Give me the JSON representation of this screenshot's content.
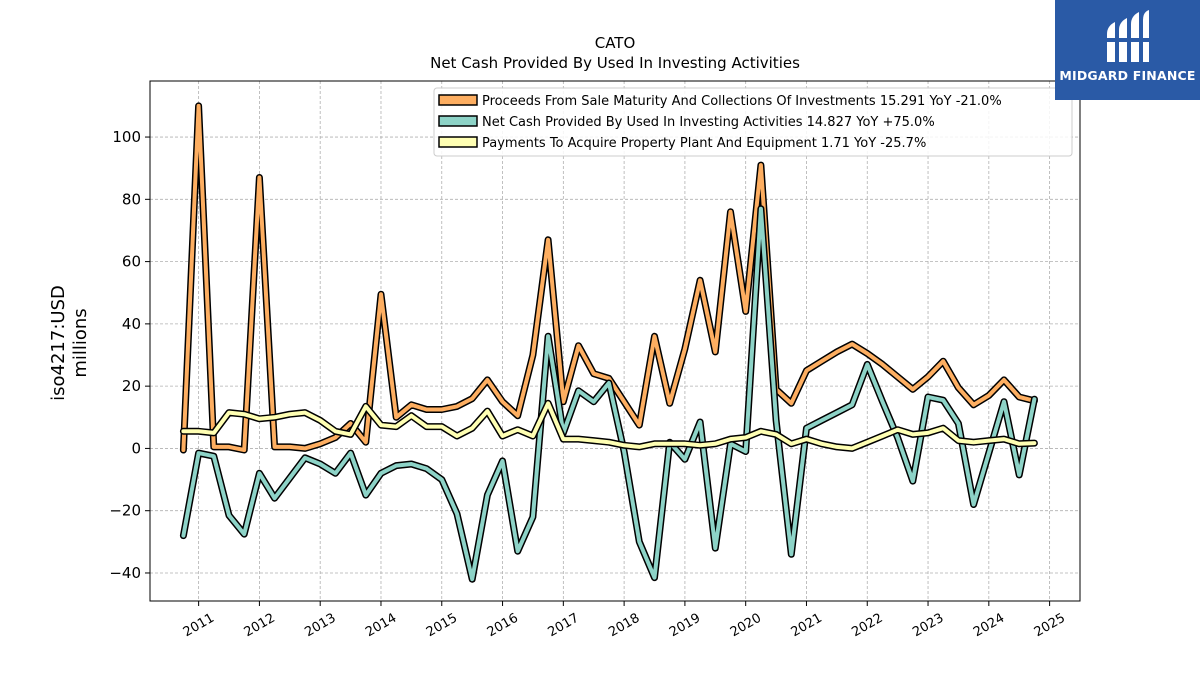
{
  "chart_data": {
    "type": "line",
    "title": "CATO",
    "subtitle": "Net Cash Provided By Used In Investing Activities",
    "ylabel": "iso4217:USD\nmillions",
    "xlabel": "",
    "ylim": [
      -49,
      118
    ],
    "xlim": [
      2010.2,
      2025.5
    ],
    "yticks": [
      -40,
      -20,
      0,
      20,
      40,
      60,
      80,
      100
    ],
    "ytick_labels": [
      "−40",
      "−20",
      "0",
      "20",
      "40",
      "60",
      "80",
      "100"
    ],
    "xticks": [
      2011,
      2012,
      2013,
      2014,
      2015,
      2016,
      2017,
      2018,
      2019,
      2020,
      2021,
      2022,
      2023,
      2024,
      2025
    ],
    "xtick_labels": [
      "2011",
      "2012",
      "2013",
      "2014",
      "2015",
      "2016",
      "2017",
      "2018",
      "2019",
      "2020",
      "2021",
      "2022",
      "2023",
      "2024",
      "2025"
    ],
    "grid": true,
    "legend_position": "top-right",
    "series": [
      {
        "name": "Proceeds From Sale Maturity And Collections Of Investments",
        "legend": "Proceeds From Sale Maturity And Collections Of Investments  15.291 YoY -21.0%",
        "color": "#fdae61",
        "points": [
          [
            2010.75,
            -0.5
          ],
          [
            2011.0,
            110
          ],
          [
            2011.25,
            0.5
          ],
          [
            2011.5,
            0.5
          ],
          [
            2011.75,
            -0.5
          ],
          [
            2012.0,
            87
          ],
          [
            2012.25,
            0.5
          ],
          [
            2012.5,
            0.5
          ],
          [
            2012.75,
            0
          ],
          [
            2013.0,
            1.5
          ],
          [
            2013.25,
            3.5
          ],
          [
            2013.5,
            8
          ],
          [
            2013.75,
            2
          ],
          [
            2014.0,
            49.5
          ],
          [
            2014.25,
            10
          ],
          [
            2014.5,
            14
          ],
          [
            2014.75,
            12.5
          ],
          [
            2015.0,
            12.5
          ],
          [
            2015.25,
            13.5
          ],
          [
            2015.5,
            16
          ],
          [
            2015.75,
            22
          ],
          [
            2016.0,
            15
          ],
          [
            2016.25,
            10.5
          ],
          [
            2016.5,
            30
          ],
          [
            2016.75,
            67
          ],
          [
            2017.0,
            15
          ],
          [
            2017.25,
            33
          ],
          [
            2017.5,
            24
          ],
          [
            2017.75,
            22.5
          ],
          [
            2018.0,
            15
          ],
          [
            2018.25,
            7.5
          ],
          [
            2018.5,
            36
          ],
          [
            2018.75,
            14.5
          ],
          [
            2019.0,
            32
          ],
          [
            2019.25,
            54
          ],
          [
            2019.5,
            31
          ],
          [
            2019.75,
            76
          ],
          [
            2020.0,
            44
          ],
          [
            2020.25,
            91
          ],
          [
            2020.5,
            19
          ],
          [
            2020.75,
            14.5
          ],
          [
            2021.0,
            25
          ],
          [
            2021.25,
            28
          ],
          [
            2021.5,
            31
          ],
          [
            2021.75,
            33.5
          ],
          [
            2022.0,
            30.5
          ],
          [
            2022.25,
            27
          ],
          [
            2022.5,
            23
          ],
          [
            2022.75,
            19
          ],
          [
            2023.0,
            23
          ],
          [
            2023.25,
            28
          ],
          [
            2023.5,
            19.5
          ],
          [
            2023.75,
            14
          ],
          [
            2024.0,
            17
          ],
          [
            2024.25,
            22
          ],
          [
            2024.5,
            16.5
          ],
          [
            2024.75,
            15.3
          ]
        ]
      },
      {
        "name": "Net Cash Provided By Used In Investing Activities",
        "legend": "Net Cash Provided By Used In Investing Activities  14.827 YoY +75.0%",
        "color": "#8dd3c7",
        "points": [
          [
            2010.75,
            -28
          ],
          [
            2011.0,
            -1.5
          ],
          [
            2011.25,
            -2.5
          ],
          [
            2011.5,
            -21.5
          ],
          [
            2011.75,
            -27.5
          ],
          [
            2012.0,
            -8
          ],
          [
            2012.25,
            -16
          ],
          [
            2012.5,
            -9.5
          ],
          [
            2012.75,
            -3
          ],
          [
            2013.0,
            -5
          ],
          [
            2013.25,
            -8
          ],
          [
            2013.5,
            -1.5
          ],
          [
            2013.75,
            -15
          ],
          [
            2014.0,
            -8
          ],
          [
            2014.25,
            -5.5
          ],
          [
            2014.5,
            -5
          ],
          [
            2014.75,
            -6.5
          ],
          [
            2015.0,
            -10
          ],
          [
            2015.25,
            -21
          ],
          [
            2015.5,
            -42
          ],
          [
            2015.75,
            -15
          ],
          [
            2016.0,
            -4
          ],
          [
            2016.25,
            -33
          ],
          [
            2016.5,
            -22
          ],
          [
            2016.75,
            36
          ],
          [
            2017.0,
            5
          ],
          [
            2017.25,
            18.5
          ],
          [
            2017.5,
            15
          ],
          [
            2017.75,
            21
          ],
          [
            2018.0,
            -1
          ],
          [
            2018.25,
            -30
          ],
          [
            2018.5,
            -41.5
          ],
          [
            2018.75,
            2
          ],
          [
            2019.0,
            -3.5
          ],
          [
            2019.25,
            8.5
          ],
          [
            2019.5,
            -32
          ],
          [
            2019.75,
            1.5
          ],
          [
            2020.0,
            -1
          ],
          [
            2020.25,
            77
          ],
          [
            2020.5,
            9
          ],
          [
            2020.75,
            -34
          ],
          [
            2021.0,
            6.5
          ],
          [
            2021.25,
            9
          ],
          [
            2021.5,
            11.5
          ],
          [
            2021.75,
            14
          ],
          [
            2022.0,
            27
          ],
          [
            2022.25,
            15
          ],
          [
            2022.5,
            3.5
          ],
          [
            2022.75,
            -10.5
          ],
          [
            2023.0,
            16.5
          ],
          [
            2023.25,
            15.5
          ],
          [
            2023.5,
            8
          ],
          [
            2023.75,
            -18
          ],
          [
            2024.0,
            -1.5
          ],
          [
            2024.25,
            15
          ],
          [
            2024.5,
            -8.5
          ],
          [
            2024.75,
            15.8
          ]
        ]
      },
      {
        "name": "Payments To Acquire Property Plant And Equipment",
        "legend": "Payments To Acquire Property Plant And Equipment  1.71 YoY -25.7%",
        "color": "#ffffb3",
        "points": [
          [
            2010.75,
            5.5
          ],
          [
            2011.0,
            5.5
          ],
          [
            2011.25,
            5
          ],
          [
            2011.5,
            11.5
          ],
          [
            2011.75,
            11
          ],
          [
            2012.0,
            9.5
          ],
          [
            2012.25,
            10
          ],
          [
            2012.5,
            11
          ],
          [
            2012.75,
            11.5
          ],
          [
            2013.0,
            9
          ],
          [
            2013.25,
            5.5
          ],
          [
            2013.5,
            4.5
          ],
          [
            2013.75,
            13.5
          ],
          [
            2014.0,
            7.5
          ],
          [
            2014.25,
            7
          ],
          [
            2014.5,
            10.5
          ],
          [
            2014.75,
            7
          ],
          [
            2015.0,
            7
          ],
          [
            2015.25,
            4
          ],
          [
            2015.5,
            6.5
          ],
          [
            2015.75,
            12
          ],
          [
            2016.0,
            4
          ],
          [
            2016.25,
            6
          ],
          [
            2016.5,
            4
          ],
          [
            2016.75,
            14.5
          ],
          [
            2017.0,
            3
          ],
          [
            2017.25,
            3
          ],
          [
            2017.5,
            2.5
          ],
          [
            2017.75,
            2
          ],
          [
            2018.0,
            1
          ],
          [
            2018.25,
            0.5
          ],
          [
            2018.5,
            1.5
          ],
          [
            2018.75,
            1.5
          ],
          [
            2019.0,
            1.5
          ],
          [
            2019.25,
            1
          ],
          [
            2019.5,
            1.5
          ],
          [
            2019.75,
            3
          ],
          [
            2020.0,
            3.5
          ],
          [
            2020.25,
            5.5
          ],
          [
            2020.5,
            4.5
          ],
          [
            2020.75,
            1.5
          ],
          [
            2021.0,
            3
          ],
          [
            2021.25,
            1.5
          ],
          [
            2021.5,
            0.5
          ],
          [
            2021.75,
            0
          ],
          [
            2022.0,
            2
          ],
          [
            2022.25,
            4
          ],
          [
            2022.5,
            6
          ],
          [
            2022.75,
            4.5
          ],
          [
            2023.0,
            5
          ],
          [
            2023.25,
            6.5
          ],
          [
            2023.5,
            2.5
          ],
          [
            2023.75,
            2
          ],
          [
            2024.0,
            2.5
          ],
          [
            2024.25,
            3
          ],
          [
            2024.5,
            1.5
          ],
          [
            2024.75,
            1.7
          ]
        ]
      }
    ]
  },
  "logo": {
    "text": "MIDGARD FINANCE",
    "color": "#2a5aa6"
  }
}
